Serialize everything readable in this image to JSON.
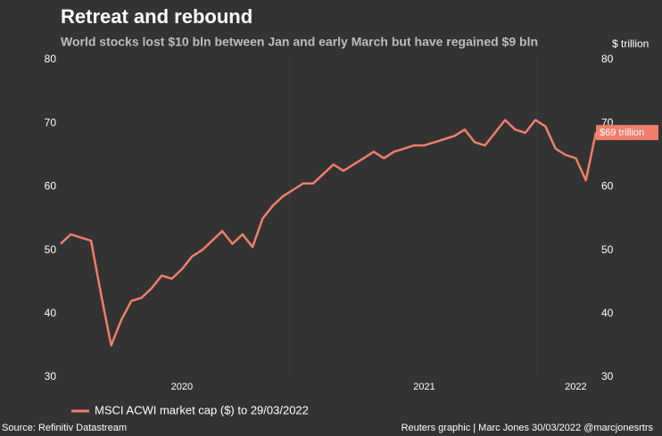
{
  "chart_data": {
    "type": "line",
    "title": "Retreat and rebound",
    "subtitle": "World stocks lost $10 bln between Jan and early March but have regained $9 bln",
    "y2_axis_label": "$ trillion",
    "categories": [
      null,
      null,
      null,
      null,
      null,
      null,
      null,
      null,
      null,
      null,
      null,
      null,
      "2020",
      null,
      null,
      null,
      null,
      null,
      null,
      null,
      null,
      null,
      null,
      null,
      null,
      null,
      null,
      null,
      null,
      null,
      null,
      null,
      null,
      null,
      null,
      null,
      "2021",
      null,
      null,
      null,
      null,
      null,
      null,
      null,
      null,
      null,
      null,
      null,
      null,
      null,
      null,
      "2022",
      null,
      null
    ],
    "series": [
      {
        "name": "MSCI ACWI market cap ($) to 29/03/2022",
        "color": "#f07e6a",
        "values": [
          51,
          52.5,
          52,
          51.5,
          43,
          35,
          39,
          42,
          42.5,
          44,
          46,
          45.5,
          47,
          49,
          50,
          51.5,
          53,
          51,
          52.5,
          50.5,
          55,
          57,
          58.5,
          59.5,
          60.5,
          60.5,
          62,
          63.5,
          62.5,
          63.5,
          64.5,
          65.5,
          64.5,
          65.5,
          66,
          66.5,
          66.5,
          67,
          67.5,
          68,
          69,
          67,
          66.5,
          68.5,
          70.5,
          69,
          68.5,
          70.5,
          69.5,
          66,
          65,
          64.5,
          61,
          68.6
        ],
        "value_labels": [
          null,
          null,
          null,
          null,
          null,
          null,
          null,
          null,
          null,
          null,
          null,
          null,
          null,
          null,
          null,
          null,
          null,
          null,
          null,
          null,
          null,
          null,
          null,
          null,
          null,
          null,
          null,
          null,
          null,
          null,
          null,
          null,
          null,
          null,
          null,
          null,
          null,
          null,
          null,
          null,
          null,
          null,
          null,
          null,
          null,
          null,
          null,
          null,
          null,
          null,
          null,
          null,
          null,
          "$69 trillion"
        ]
      }
    ],
    "ylim": [
      30,
      80
    ],
    "yticks": [
      30,
      40,
      50,
      60,
      70,
      80
    ],
    "y2lim": [
      30,
      80
    ],
    "y2ticks": [
      30,
      40,
      50,
      60,
      70,
      80
    ],
    "source": "Source: Refinitiv Datastream",
    "credit": "Reuters graphic | Marc Jones 30/03/2022 @marcjonesrtrs"
  }
}
